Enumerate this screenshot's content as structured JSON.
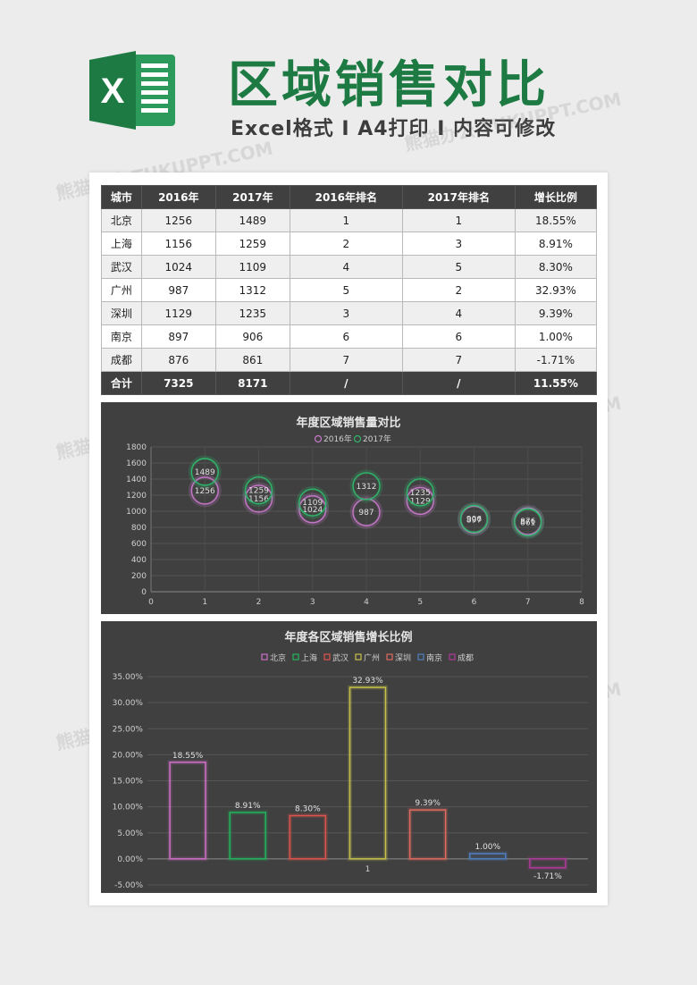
{
  "header": {
    "title": "区域销售对比",
    "subtitle": "Excel格式 I A4打印 I 内容可修改",
    "watermark": "熊猫办公 TUKUPPT.COM",
    "logo_letter": "X"
  },
  "colors": {
    "brand_green": "#1d7a43",
    "series_2016": "#c678c8",
    "series_2017": "#2fb56a",
    "cities": [
      "#d070c8",
      "#22b45c",
      "#e0534c",
      "#c8c24a",
      "#e06a5e",
      "#4f7fc0",
      "#b03a9a"
    ]
  },
  "table": {
    "headers": [
      "城市",
      "2016年",
      "2017年",
      "2016年排名",
      "2017年排名",
      "增长比例"
    ],
    "rows": [
      [
        "北京",
        "1256",
        "1489",
        "1",
        "1",
        "18.55%"
      ],
      [
        "上海",
        "1156",
        "1259",
        "2",
        "3",
        "8.91%"
      ],
      [
        "武汉",
        "1024",
        "1109",
        "4",
        "5",
        "8.30%"
      ],
      [
        "广州",
        "987",
        "1312",
        "5",
        "2",
        "32.93%"
      ],
      [
        "深圳",
        "1129",
        "1235",
        "3",
        "4",
        "9.39%"
      ],
      [
        "南京",
        "897",
        "906",
        "6",
        "6",
        "1.00%"
      ],
      [
        "成都",
        "876",
        "861",
        "7",
        "7",
        "-1.71%"
      ]
    ],
    "total": [
      "合计",
      "7325",
      "8171",
      "/",
      "/",
      "11.55%"
    ]
  },
  "chart_data": [
    {
      "type": "scatter",
      "title": "年度区域销售量对比",
      "x": [
        1,
        2,
        3,
        4,
        5,
        6,
        7
      ],
      "series": [
        {
          "name": "2016年",
          "values": [
            1256,
            1156,
            1024,
            987,
            1129,
            897,
            876
          ]
        },
        {
          "name": "2017年",
          "values": [
            1489,
            1259,
            1109,
            1312,
            1235,
            906,
            861
          ]
        }
      ],
      "xlim": [
        0,
        8
      ],
      "ylim": [
        0,
        1800
      ],
      "xticks": [
        0,
        1,
        2,
        3,
        4,
        5,
        6,
        7,
        8
      ],
      "yticks": [
        0,
        200,
        400,
        600,
        800,
        1000,
        1200,
        1400,
        1600,
        1800
      ],
      "legend": "top-center",
      "grid": true
    },
    {
      "type": "bar",
      "title": "年度各区域销售增长比例",
      "categories": [
        "1"
      ],
      "series": [
        {
          "name": "北京",
          "values": [
            18.55
          ],
          "label": "18.55%"
        },
        {
          "name": "上海",
          "values": [
            8.91
          ],
          "label": "8.91%"
        },
        {
          "name": "武汉",
          "values": [
            8.3
          ],
          "label": "8.30%"
        },
        {
          "name": "广州",
          "values": [
            32.93
          ],
          "label": "32.93%"
        },
        {
          "name": "深圳",
          "values": [
            9.39
          ],
          "label": "9.39%"
        },
        {
          "name": "南京",
          "values": [
            1.0
          ],
          "label": "1.00%"
        },
        {
          "name": "成都",
          "values": [
            -1.71
          ],
          "label": "-1.71%"
        }
      ],
      "ylim": [
        -5,
        35
      ],
      "yticks": [
        "-5.00%",
        "0.00%",
        "5.00%",
        "10.00%",
        "15.00%",
        "20.00%",
        "25.00%",
        "30.00%",
        "35.00%"
      ],
      "ytick_values": [
        -5,
        0,
        5,
        10,
        15,
        20,
        25,
        30,
        35
      ],
      "legend": "top-center",
      "grid": true
    }
  ]
}
